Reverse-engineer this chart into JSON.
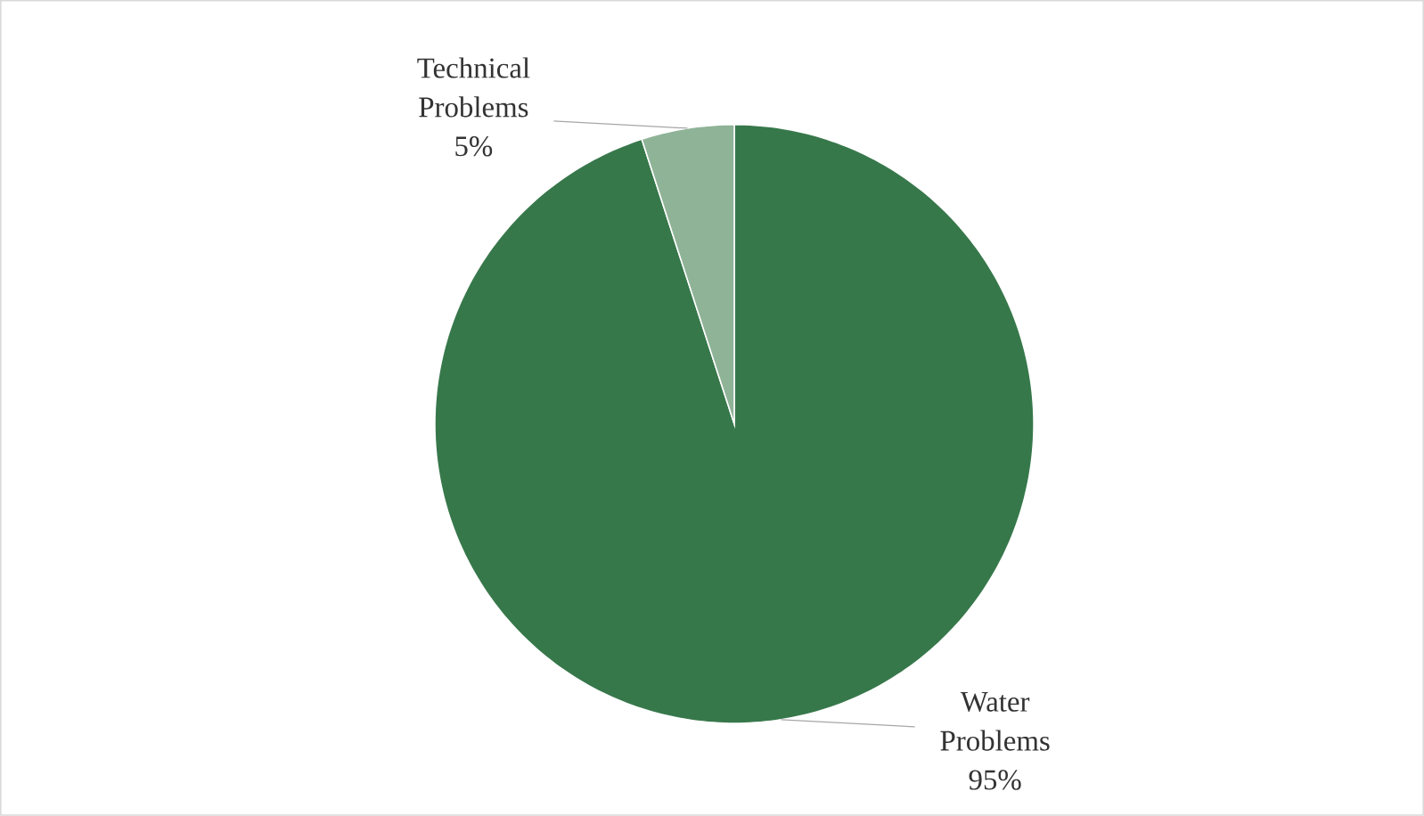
{
  "chart_data": {
    "type": "pie",
    "categories": [
      "Water Problems",
      "Technical Problems"
    ],
    "values": [
      95,
      5
    ],
    "colors": [
      "#37784b",
      "#8fb397"
    ],
    "value_labels": [
      "95%",
      "5%"
    ]
  }
}
